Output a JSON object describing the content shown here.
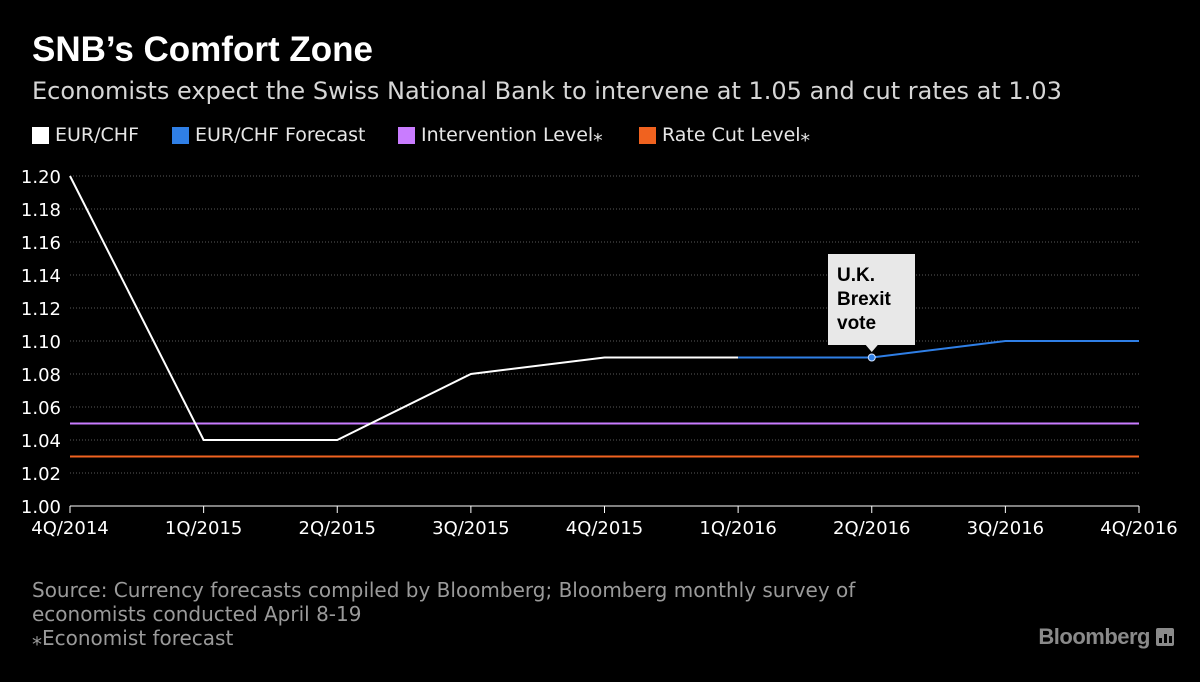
{
  "title": "SNB’s Comfort Zone",
  "subtitle": "Economists expect the Swiss National Bank to intervene at 1.05 and cut rates at 1.03",
  "legend": [
    {
      "label": "EUR/CHF",
      "color": "#ffffff"
    },
    {
      "label": "EUR/CHF Forecast",
      "color": "#2f7fe6"
    },
    {
      "label": "Intervention Level⁎",
      "color": "#c97cff"
    },
    {
      "label": "Rate Cut Level⁎",
      "color": "#f0621f"
    }
  ],
  "chart_data": {
    "type": "line",
    "categories": [
      "4Q/2014",
      "1Q/2015",
      "2Q/2015",
      "3Q/2015",
      "4Q/2015",
      "1Q/2016",
      "2Q/2016",
      "3Q/2016",
      "4Q/2016"
    ],
    "series": [
      {
        "name": "EUR/CHF",
        "color": "#ffffff",
        "values": [
          1.2,
          1.04,
          1.04,
          1.08,
          1.09,
          1.09,
          null,
          null,
          null
        ]
      },
      {
        "name": "EUR/CHF Forecast",
        "color": "#2f7fe6",
        "values": [
          null,
          null,
          null,
          null,
          null,
          1.09,
          1.09,
          1.1,
          1.1
        ]
      },
      {
        "name": "Intervention Level⁎",
        "color": "#c97cff",
        "values": [
          1.05,
          1.05,
          1.05,
          1.05,
          1.05,
          1.05,
          1.05,
          1.05,
          1.05
        ]
      },
      {
        "name": "Rate Cut Level⁎",
        "color": "#f0621f",
        "values": [
          1.03,
          1.03,
          1.03,
          1.03,
          1.03,
          1.03,
          1.03,
          1.03,
          1.03
        ]
      }
    ],
    "ylim": [
      1.0,
      1.2
    ],
    "yticks": [
      "1.00",
      "1.02",
      "1.04",
      "1.06",
      "1.08",
      "1.10",
      "1.12",
      "1.14",
      "1.16",
      "1.18",
      "1.20"
    ],
    "grid": true,
    "annotations": [
      {
        "category": "2Q/2016",
        "value": 1.09,
        "lines": [
          "U.K.",
          "Brexit",
          "vote"
        ]
      }
    ]
  },
  "footer": {
    "source_line1": "Source: Currency forecasts compiled by Bloomberg; Bloomberg monthly survey of",
    "source_line2": "economists conducted April 8-19",
    "note": "⁎Economist forecast"
  },
  "brand": "Bloomberg"
}
